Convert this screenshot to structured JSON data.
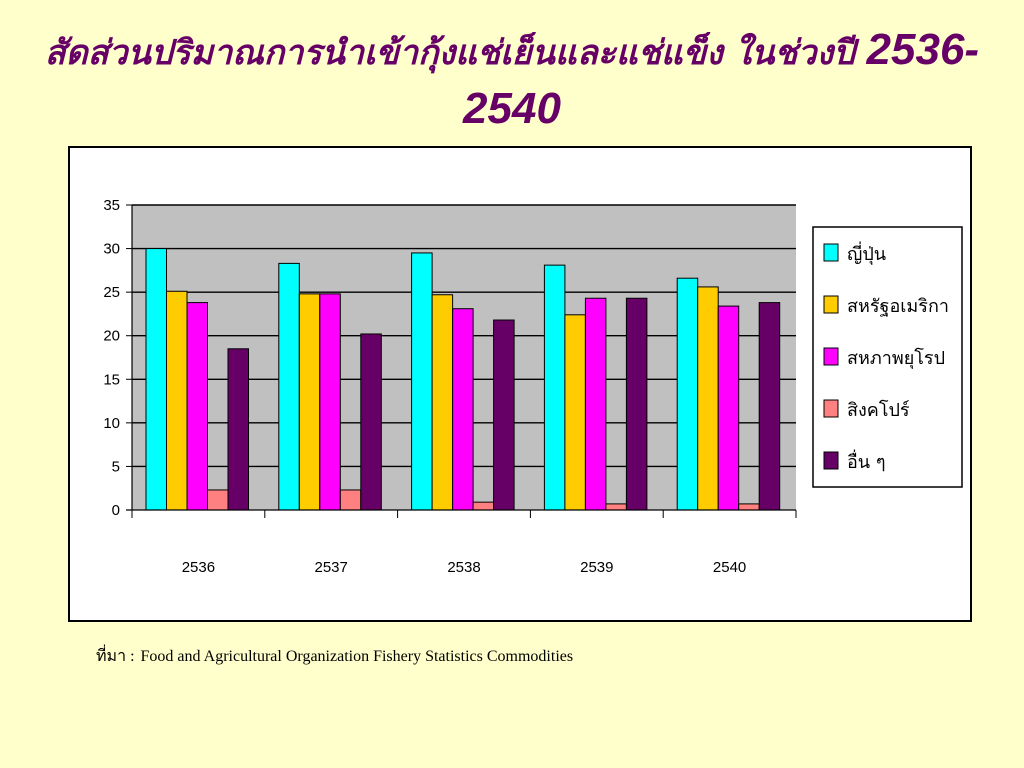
{
  "title": {
    "text": "สัดส่วนปริมาณการนำเข้ากุ้งแช่เย็นและแช่แข็ง ในช่วงปี ",
    "years": "2536-2540"
  },
  "source": {
    "label": "ที่มา :",
    "text": "Food and Agricultural Organization Fishery Statistics Commodities"
  },
  "chart_data": {
    "type": "bar",
    "title": "",
    "xlabel": "",
    "ylabel": "",
    "categories": [
      "2536",
      "2537",
      "2538",
      "2539",
      "2540"
    ],
    "ylim": [
      0,
      35
    ],
    "yticks": [
      0,
      5,
      10,
      15,
      20,
      25,
      30,
      35
    ],
    "grid": true,
    "legend_position": "right",
    "plot_background": "#C0C0C0",
    "series": [
      {
        "name": "ญี่ปุ่น",
        "color": "#00FFFF",
        "values": [
          30.0,
          28.3,
          29.5,
          28.1,
          26.6
        ]
      },
      {
        "name": "สหรัฐอเมริกา",
        "color": "#FFCC00",
        "values": [
          25.1,
          24.8,
          24.7,
          22.4,
          25.6
        ]
      },
      {
        "name": "สหภาพยุโรป",
        "color": "#FF00FF",
        "values": [
          23.8,
          24.8,
          23.1,
          24.3,
          23.4
        ]
      },
      {
        "name": "สิงคโปร์",
        "color": "#FF8080",
        "values": [
          2.3,
          2.3,
          0.9,
          0.7,
          0.7
        ]
      },
      {
        "name": "อื่น ๆ",
        "color": "#660066",
        "values": [
          18.5,
          20.2,
          21.8,
          24.3,
          23.8
        ]
      }
    ]
  }
}
